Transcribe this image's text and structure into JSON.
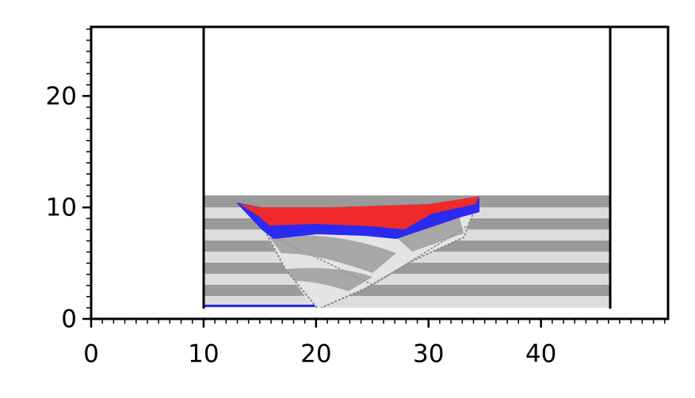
{
  "chart_data": {
    "type": "scatter",
    "xlim": [
      0,
      51.3
    ],
    "ylim": [
      0,
      26.2
    ],
    "xticks": [
      0,
      10,
      20,
      30,
      40
    ],
    "yticks": [
      0,
      10,
      20
    ]
  }
}
